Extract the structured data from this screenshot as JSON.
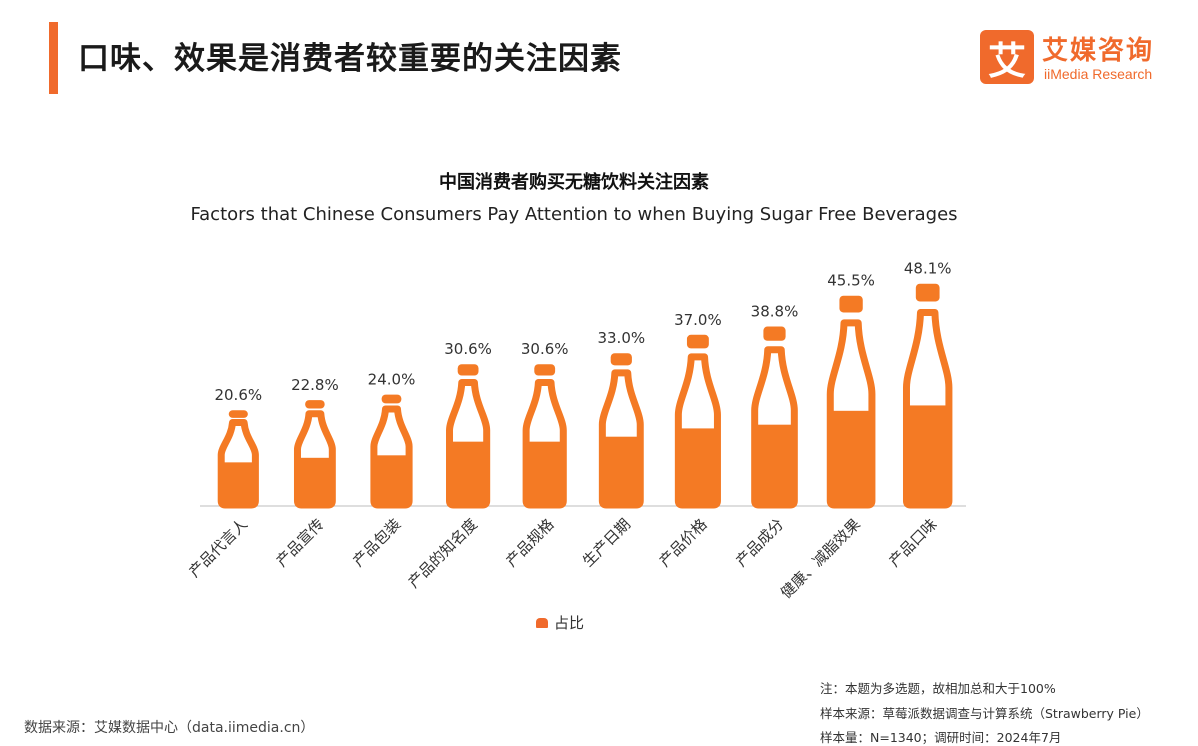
{
  "header": {
    "title": "口味、效果是消费者较重要的关注因素",
    "accent_color": "#f06a2c"
  },
  "logo": {
    "mark": "艾",
    "name_cn": "艾媒咨询",
    "name_en": "iiMedia Research"
  },
  "chart_data": {
    "type": "bar",
    "title": "中国消费者购买无糖饮料关注因素",
    "subtitle": "Factors that Chinese Consumers Pay Attention to when Buying Sugar Free Beverages",
    "categories": [
      "产品代言人",
      "产品宣传",
      "产品包装",
      "产品的知名度",
      "产品规格",
      "生产日期",
      "产品价格",
      "产品成分",
      "健康、减脂效果",
      "产品口味"
    ],
    "series": [
      {
        "name": "占比",
        "values": [
          20.6,
          22.8,
          24.0,
          30.6,
          30.6,
          33.0,
          37.0,
          38.8,
          45.5,
          48.1
        ],
        "color": "#f47a24"
      }
    ],
    "value_labels": [
      "20.6%",
      "22.8%",
      "24.0%",
      "30.6%",
      "30.6%",
      "33.0%",
      "37.0%",
      "38.8%",
      "45.5%",
      "48.1%"
    ],
    "unit": "%",
    "ylim": [
      0,
      50
    ],
    "grid": false,
    "legend": "bottom-center",
    "marker": "bottle"
  },
  "notes": {
    "note1": "注：本题为多选题，故相加总和大于100%",
    "note2": "样本来源：草莓派数据调查与计算系统（Strawberry Pie）",
    "note3": "样本量：N=1340；调研时间：2024年7月"
  },
  "source": "数据来源：艾媒数据中心（data.iimedia.cn）"
}
